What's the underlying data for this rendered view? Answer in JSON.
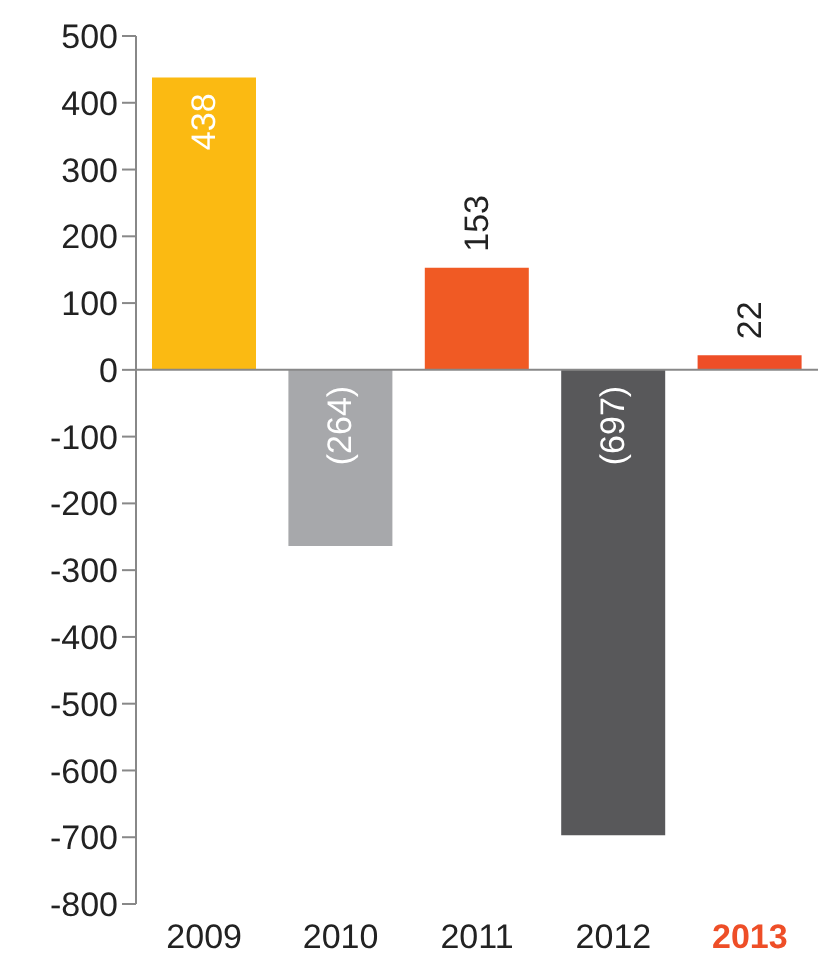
{
  "chart_data": {
    "type": "bar",
    "categories": [
      "2009",
      "2010",
      "2011",
      "2012",
      "2013"
    ],
    "values": [
      438,
      -264,
      153,
      -697,
      22
    ],
    "colors": [
      "#fbba12",
      "#a7a8ab",
      "#f05a24",
      "#58585a",
      "#ee4e27"
    ],
    "value_labels": [
      "438",
      "(264)",
      "153",
      "(697)",
      "22"
    ],
    "ylim": [
      -800,
      500
    ],
    "yticks": [
      -800,
      -700,
      -600,
      -500,
      -400,
      -300,
      -200,
      -100,
      0,
      100,
      200,
      300,
      400,
      500
    ],
    "legend": false
  }
}
